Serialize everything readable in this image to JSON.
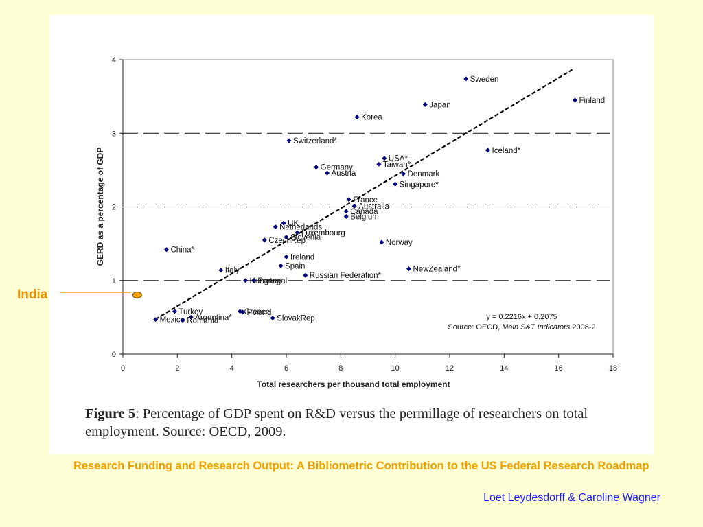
{
  "slide": {
    "title": "Research Funding and Research Output: A Bibliometric Contribution to the US Federal Research Roadmap",
    "authors": "Loet Leydesdorff & Caroline Wagner",
    "india_label": "India",
    "accent_color": "#f0a000",
    "author_color": "#1a1aff",
    "background_color": "#ffffd6"
  },
  "figure_caption": {
    "label": "Figure 5",
    "text": ": Percentage of GDP spent on R&D versus the permillage of researchers on total employment. Source: OECD, 2009."
  },
  "chart_data": {
    "type": "scatter",
    "xlabel": "Total researchers per thousand total employment",
    "ylabel": "GERD as a percentage of GDP",
    "xlim": [
      0,
      18
    ],
    "ylim": [
      0,
      4
    ],
    "xticks": [
      0,
      2,
      4,
      6,
      8,
      10,
      12,
      14,
      16,
      18
    ],
    "yticks": [
      0,
      1,
      2,
      3,
      4
    ],
    "grid": "horizontal dashed at 1, 2, 3",
    "trendline": {
      "equation": "y = 0.2216x + 0.2075",
      "slope": 0.2216,
      "intercept": 0.2075,
      "x_range": [
        1.2,
        16.5
      ],
      "style": "dashed"
    },
    "source_note_prefix": "Source: OECD, ",
    "source_note_italic": "Main S&T Indicators",
    "source_note_suffix": " 2008-2",
    "point_color": "#00007a",
    "points": [
      {
        "label": "Sweden",
        "x": 12.6,
        "y": 3.74
      },
      {
        "label": "Finland",
        "x": 16.6,
        "y": 3.45
      },
      {
        "label": "Japan",
        "x": 11.1,
        "y": 3.39
      },
      {
        "label": "Korea",
        "x": 8.6,
        "y": 3.22
      },
      {
        "label": "Switzerland*",
        "x": 6.1,
        "y": 2.9
      },
      {
        "label": "Iceland*",
        "x": 13.4,
        "y": 2.77
      },
      {
        "label": "USA*",
        "x": 9.6,
        "y": 2.66
      },
      {
        "label": "Taiwan*",
        "x": 9.4,
        "y": 2.58
      },
      {
        "label": "Germany",
        "x": 7.1,
        "y": 2.54
      },
      {
        "label": "Austria",
        "x": 7.5,
        "y": 2.46
      },
      {
        "label": "Denmark",
        "x": 10.3,
        "y": 2.45
      },
      {
        "label": "Singapore*",
        "x": 10.0,
        "y": 2.31
      },
      {
        "label": "France",
        "x": 8.3,
        "y": 2.1
      },
      {
        "label": "Australia",
        "x": 8.5,
        "y": 2.01
      },
      {
        "label": "Canada",
        "x": 8.2,
        "y": 1.94
      },
      {
        "label": "Belgium",
        "x": 8.2,
        "y": 1.87
      },
      {
        "label": "UK",
        "x": 5.9,
        "y": 1.78
      },
      {
        "label": "Netherlands",
        "x": 5.6,
        "y": 1.73
      },
      {
        "label": "Luxembourg",
        "x": 6.4,
        "y": 1.65
      },
      {
        "label": "Slovenia",
        "x": 6.0,
        "y": 1.59
      },
      {
        "label": "CzechRep",
        "x": 5.2,
        "y": 1.55
      },
      {
        "label": "Norway",
        "x": 9.5,
        "y": 1.52
      },
      {
        "label": "China*",
        "x": 1.6,
        "y": 1.42
      },
      {
        "label": "Ireland",
        "x": 6.0,
        "y": 1.32
      },
      {
        "label": "Spain",
        "x": 5.8,
        "y": 1.2
      },
      {
        "label": "NewZealand*",
        "x": 10.5,
        "y": 1.16
      },
      {
        "label": "Italy",
        "x": 3.6,
        "y": 1.14
      },
      {
        "label": "Russian Federation*",
        "x": 6.7,
        "y": 1.07
      },
      {
        "label": "Hungary",
        "x": 4.5,
        "y": 1.0
      },
      {
        "label": "Portugal",
        "x": 4.8,
        "y": 1.0
      },
      {
        "label": "Turkey",
        "x": 1.9,
        "y": 0.58
      },
      {
        "label": "Greece",
        "x": 4.3,
        "y": 0.58
      },
      {
        "label": "Poland",
        "x": 4.4,
        "y": 0.57
      },
      {
        "label": "Argentina*",
        "x": 2.5,
        "y": 0.5
      },
      {
        "label": "SlovakRep",
        "x": 5.5,
        "y": 0.49
      },
      {
        "label": "Mexico",
        "x": 1.2,
        "y": 0.47
      },
      {
        "label": "Romania",
        "x": 2.2,
        "y": 0.46
      }
    ],
    "annotation": {
      "label": "India",
      "x": 0.5,
      "y": 0.8,
      "color": "#f0a000"
    }
  }
}
